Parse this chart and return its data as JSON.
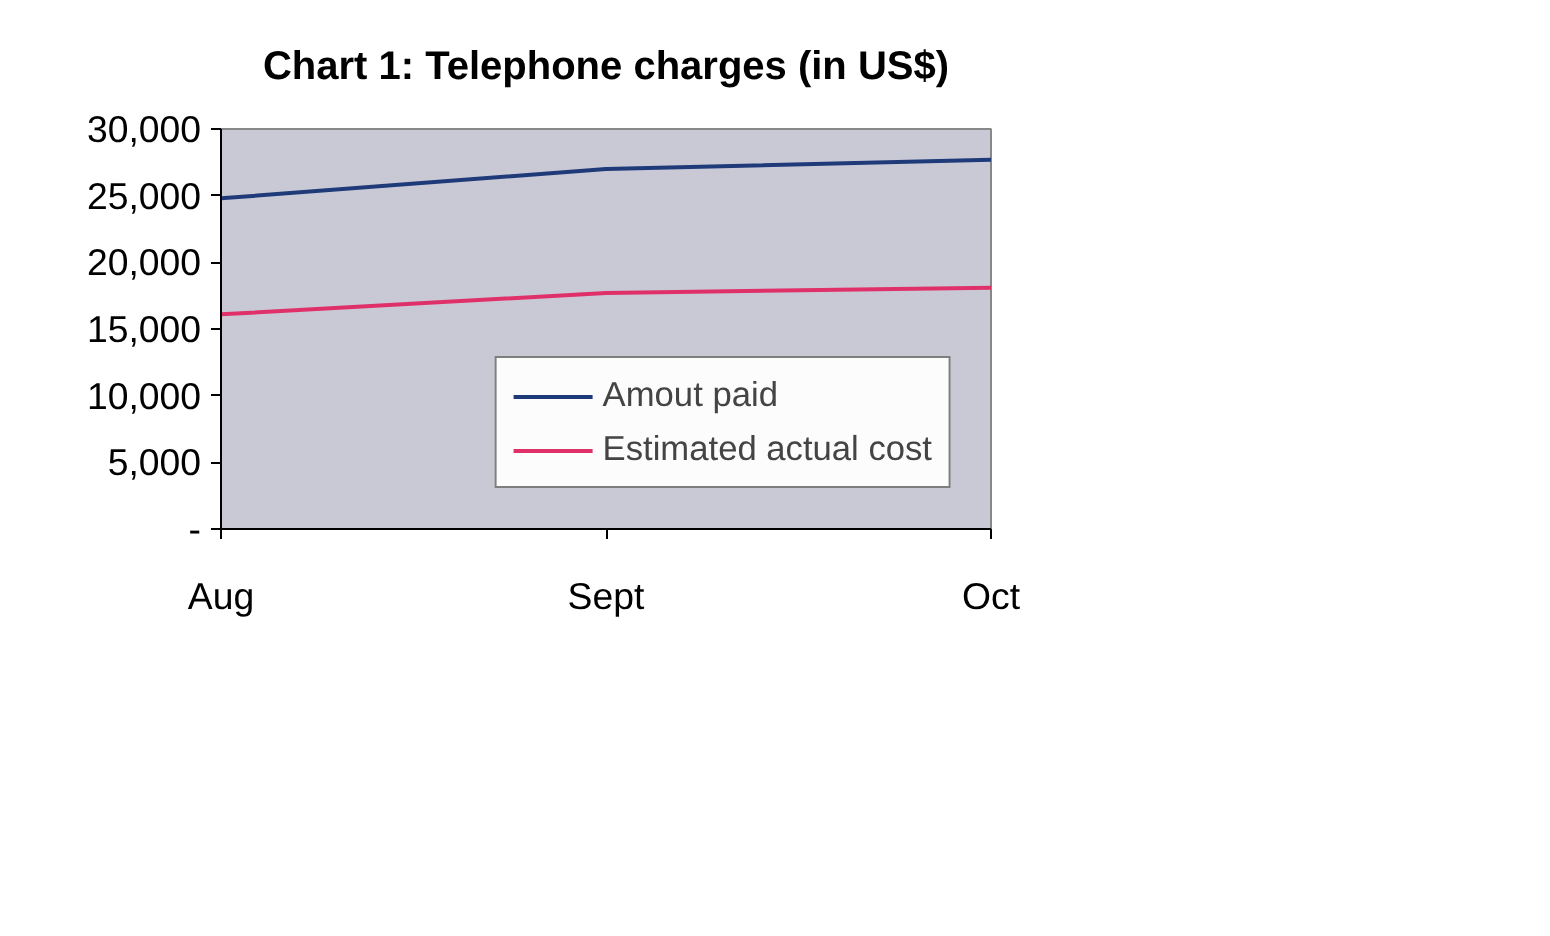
{
  "chart_data": {
    "type": "line",
    "title": "Chart 1: Telephone charges (in US$)",
    "categories": [
      "Aug",
      "Sept",
      "Oct"
    ],
    "series": [
      {
        "name": "Amout paid",
        "color": "#1f3a78",
        "values": [
          24800,
          27000,
          27700
        ]
      },
      {
        "name": "Estimated actual cost",
        "color": "#e0306a",
        "values": [
          16100,
          17700,
          18100
        ]
      }
    ],
    "ylim": [
      0,
      30000
    ],
    "yticks": [
      {
        "value": 0,
        "label": "-"
      },
      {
        "value": 5000,
        "label": "5,000"
      },
      {
        "value": 10000,
        "label": "10,000"
      },
      {
        "value": 15000,
        "label": "15,000"
      },
      {
        "value": 20000,
        "label": "20,000"
      },
      {
        "value": 25000,
        "label": "25,000"
      },
      {
        "value": 30000,
        "label": "30,000"
      }
    ],
    "grid": false,
    "legend": "right",
    "marker": "none",
    "line_style": "solid"
  }
}
